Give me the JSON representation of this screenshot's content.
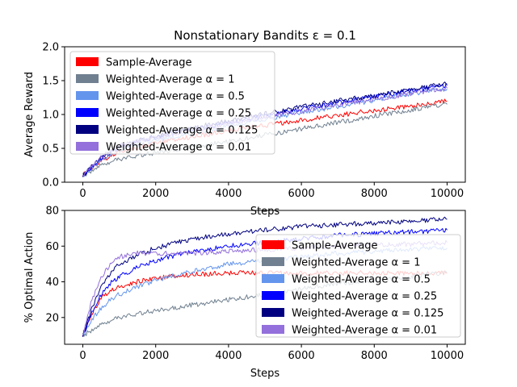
{
  "figure": {
    "title": "Nonstationary Bandits ε = 0.1"
  },
  "chart_data": [
    {
      "type": "line",
      "title": "Nonstationary Bandits ε = 0.1",
      "xlabel": "Steps",
      "ylabel": "Average Reward",
      "xlim": [
        -500,
        10500
      ],
      "ylim": [
        0.0,
        2.0
      ],
      "xticks": [
        "0",
        "2000",
        "4000",
        "6000",
        "8000",
        "10000"
      ],
      "yticks": [
        "0.0",
        "0.5",
        "1.0",
        "1.5",
        "2.0"
      ],
      "legend": "upper-left",
      "x": [
        0,
        500,
        1000,
        2000,
        3000,
        4000,
        5000,
        6000,
        7000,
        8000,
        9000,
        10000
      ],
      "series": [
        {
          "name": "Sample-Average",
          "color": "#ff0000",
          "values": [
            0.1,
            0.32,
            0.45,
            0.58,
            0.67,
            0.76,
            0.84,
            0.92,
            0.99,
            1.06,
            1.13,
            1.2
          ]
        },
        {
          "name": "Weighted-Average α = 1",
          "color": "#708090",
          "values": [
            0.1,
            0.25,
            0.34,
            0.44,
            0.52,
            0.6,
            0.7,
            0.79,
            0.88,
            0.98,
            1.07,
            1.15
          ]
        },
        {
          "name": "Weighted-Average α = 0.5",
          "color": "#6495ed",
          "values": [
            0.1,
            0.33,
            0.48,
            0.62,
            0.72,
            0.83,
            0.93,
            1.03,
            1.12,
            1.21,
            1.3,
            1.38
          ]
        },
        {
          "name": "Weighted-Average α = 0.25",
          "color": "#0000ff",
          "values": [
            0.1,
            0.36,
            0.52,
            0.67,
            0.78,
            0.88,
            0.98,
            1.08,
            1.17,
            1.26,
            1.35,
            1.43
          ]
        },
        {
          "name": "Weighted-Average α = 0.125",
          "color": "#000080",
          "values": [
            0.1,
            0.36,
            0.53,
            0.68,
            0.8,
            0.91,
            1.01,
            1.11,
            1.2,
            1.28,
            1.37,
            1.45
          ]
        },
        {
          "name": "Weighted-Average α = 0.01",
          "color": "#9370db",
          "values": [
            0.1,
            0.37,
            0.54,
            0.66,
            0.76,
            0.86,
            0.96,
            1.05,
            1.14,
            1.22,
            1.31,
            1.39
          ]
        }
      ]
    },
    {
      "type": "line",
      "title": "",
      "xlabel": "Steps",
      "ylabel": "% Optimal Action",
      "xlim": [
        -500,
        10500
      ],
      "ylim": [
        5,
        80
      ],
      "xticks": [
        "0",
        "2000",
        "4000",
        "6000",
        "8000",
        "10000"
      ],
      "yticks": [
        "20",
        "40",
        "60",
        "80"
      ],
      "legend": "center-right",
      "x": [
        0,
        250,
        500,
        750,
        1000,
        1500,
        2000,
        3000,
        4000,
        5000,
        6000,
        7000,
        8000,
        9000,
        10000
      ],
      "series": [
        {
          "name": "Sample-Average",
          "color": "#ff0000",
          "values": [
            10,
            22,
            31,
            35,
            37,
            40,
            42,
            44,
            45,
            45,
            45,
            45,
            45,
            45,
            45
          ]
        },
        {
          "name": "Weighted-Average α = 1",
          "color": "#708090",
          "values": [
            10,
            13,
            16,
            18,
            20,
            22,
            24,
            27,
            30,
            33,
            36,
            39,
            41,
            43,
            45
          ]
        },
        {
          "name": "Weighted-Average α = 0.5",
          "color": "#6495ed",
          "values": [
            10,
            19,
            25,
            30,
            33,
            37,
            41,
            46,
            50,
            52,
            54,
            56,
            57,
            58,
            59
          ]
        },
        {
          "name": "Weighted-Average α = 0.25",
          "color": "#0000ff",
          "values": [
            10,
            23,
            33,
            39,
            43,
            48,
            52,
            57,
            60,
            62,
            64,
            66,
            67,
            68,
            69
          ]
        },
        {
          "name": "Weighted-Average α = 0.125",
          "color": "#000080",
          "values": [
            10,
            25,
            37,
            45,
            50,
            55,
            59,
            64,
            67,
            69,
            71,
            72,
            73,
            74,
            75
          ]
        },
        {
          "name": "Weighted-Average α = 0.01",
          "color": "#9370db",
          "values": [
            10,
            30,
            42,
            50,
            54,
            56,
            56,
            56,
            57,
            58,
            59,
            60,
            61,
            61,
            62
          ]
        }
      ]
    }
  ]
}
